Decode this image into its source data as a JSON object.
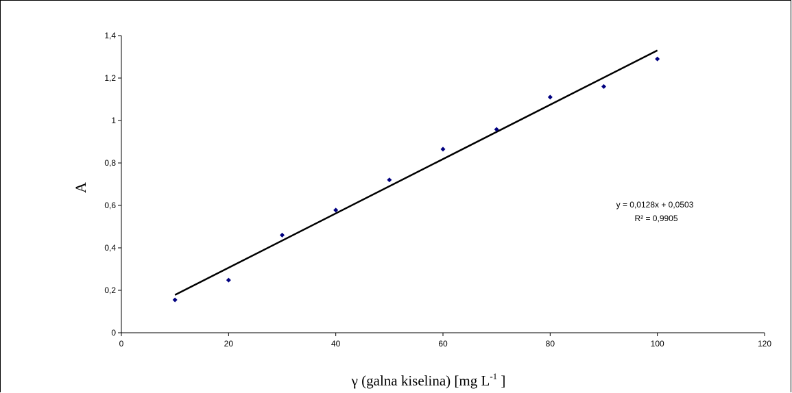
{
  "chart_data": {
    "type": "scatter",
    "title": "",
    "xlabel": "γ (galna kiselina)  [mg L",
    "xlabel_superscript": "-1",
    "xlabel_suffix": " ]",
    "ylabel": "A",
    "xlim": [
      0,
      120
    ],
    "ylim": [
      0,
      1.4
    ],
    "x_ticks": [
      "0",
      "20",
      "40",
      "60",
      "80",
      "100",
      "120"
    ],
    "y_ticks": [
      "0",
      "0,2",
      "0,4",
      "0,6",
      "0,8",
      "1",
      "1,2",
      "1,4"
    ],
    "grid": false,
    "legend": "none",
    "series": [
      {
        "x": [
          10,
          20,
          30,
          40,
          50,
          60,
          70,
          80,
          90,
          100
        ],
        "y": [
          0.155,
          0.248,
          0.46,
          0.578,
          0.72,
          0.865,
          0.958,
          1.11,
          1.16,
          1.29
        ],
        "marker": "diamond",
        "color": "#000080"
      }
    ],
    "trendline": {
      "slope": 0.0128,
      "intercept": 0.0503,
      "x_range": [
        10,
        100
      ],
      "color": "#000000",
      "equation": "y = 0,0128x + 0,0503",
      "r_squared": "R² = 0,9905"
    }
  }
}
